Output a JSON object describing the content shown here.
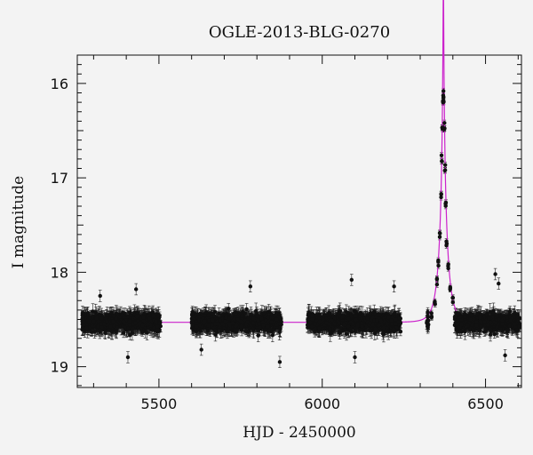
{
  "chart_data": {
    "type": "scatter",
    "title": "OGLE-2013-BLG-0270",
    "xlabel": "HJD - 2450000",
    "ylabel": "I magnitude",
    "xlim": [
      5250,
      6610
    ],
    "ylim": [
      19.22,
      15.7
    ],
    "y_inverted": true,
    "grid": false,
    "legend": "none",
    "x_ticks": [
      5500,
      6000,
      6500
    ],
    "x_tick_labels": [
      "5500",
      "6000",
      "6500"
    ],
    "y_ticks": [
      16,
      17,
      18,
      19
    ],
    "y_tick_labels": [
      "16",
      "17",
      "18",
      "19"
    ],
    "data_color": "#111111",
    "model_color": "#cc22cc",
    "baseline_magnitude": 18.53,
    "seasons": [
      {
        "start": 5265,
        "end": 5505,
        "center_mag": 18.53,
        "spread": 0.12
      },
      {
        "start": 5600,
        "end": 5875,
        "center_mag": 18.53,
        "spread": 0.12
      },
      {
        "start": 5955,
        "end": 6240,
        "center_mag": 18.53,
        "spread": 0.12
      },
      {
        "start": 6320,
        "end": 6605,
        "center_mag": 18.53,
        "spread": 0.12
      }
    ],
    "peak_points": [
      {
        "x": 6335,
        "y": 18.45
      },
      {
        "x": 6345,
        "y": 18.3
      },
      {
        "x": 6352,
        "y": 18.1
      },
      {
        "x": 6356,
        "y": 17.9
      },
      {
        "x": 6360,
        "y": 17.6
      },
      {
        "x": 6364,
        "y": 17.2
      },
      {
        "x": 6366,
        "y": 16.8
      },
      {
        "x": 6368,
        "y": 16.45
      },
      {
        "x": 6370,
        "y": 16.2
      },
      {
        "x": 6371,
        "y": 16.12
      },
      {
        "x": 6372,
        "y": 16.17
      },
      {
        "x": 6374,
        "y": 16.45
      },
      {
        "x": 6376,
        "y": 16.9
      },
      {
        "x": 6378,
        "y": 17.3
      },
      {
        "x": 6381,
        "y": 17.7
      },
      {
        "x": 6386,
        "y": 17.95
      },
      {
        "x": 6392,
        "y": 18.15
      },
      {
        "x": 6400,
        "y": 18.3
      }
    ],
    "outliers": [
      {
        "x": 5320,
        "y": 18.25
      },
      {
        "x": 5430,
        "y": 18.18
      },
      {
        "x": 5405,
        "y": 18.9
      },
      {
        "x": 5780,
        "y": 18.15
      },
      {
        "x": 5870,
        "y": 18.95
      },
      {
        "x": 5630,
        "y": 18.82
      },
      {
        "x": 6090,
        "y": 18.08
      },
      {
        "x": 6220,
        "y": 18.15
      },
      {
        "x": 6100,
        "y": 18.9
      },
      {
        "x": 6530,
        "y": 18.02
      },
      {
        "x": 6540,
        "y": 18.12
      },
      {
        "x": 6560,
        "y": 18.88
      }
    ],
    "model_curve": {
      "t0": 6371,
      "tE": 25,
      "u0": 0.035,
      "baseline": 18.53
    }
  }
}
